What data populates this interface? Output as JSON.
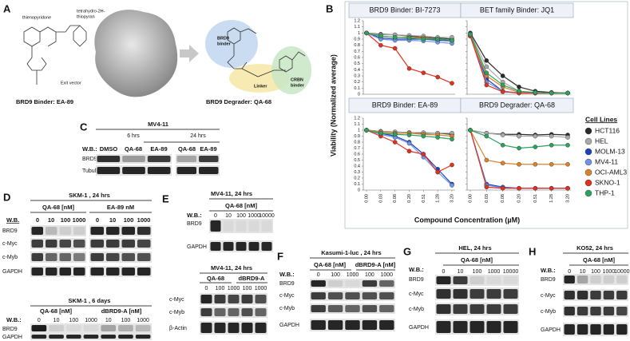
{
  "panel_labels": [
    "A",
    "B",
    "C",
    "D",
    "E",
    "F",
    "G",
    "H"
  ],
  "panel_a": {
    "structure_labels": [
      "thienopyridone",
      "tetrahydro-2H-",
      "thiopyran",
      "Exit vector"
    ],
    "binder_title": "BRD9 Binder: EA-89",
    "degrader_title": "BRD9 Degrader: QA-68",
    "regions": [
      "BRD9",
      "binder",
      "Linker",
      "CRBN",
      "binder"
    ]
  },
  "panel_b": {
    "y_label": "Viability (Normalized average)",
    "x_label": "Compound Concentration (µM)"
  },
  "legend": {
    "title": "Cell Lines",
    "entries": [
      {
        "name": "HCT116",
        "color": "#2b2b2b"
      },
      {
        "name": "HEL",
        "color": "#a9a9a9"
      },
      {
        "name": "MOLM-13",
        "color": "#1f3fbf"
      },
      {
        "name": "MV4-11",
        "color": "#7094e6"
      },
      {
        "name": "OCI-AML3",
        "color": "#d9822b"
      },
      {
        "name": "SKNO-1",
        "color": "#e0301e"
      },
      {
        "name": "THP-1",
        "color": "#2ca25f"
      }
    ]
  },
  "chart_data": [
    {
      "type": "line",
      "title": "BRD9 Binder: BI-7273",
      "ylim": [
        0,
        1.2
      ],
      "yticks": [
        0,
        0.1,
        0.2,
        0.3,
        0.4,
        0.5,
        0.6,
        0.7,
        0.8,
        0.9,
        1,
        1.1,
        1.2
      ],
      "series": [
        {
          "values": [
            1,
            0.98,
            0.97,
            0.95,
            0.93,
            0.92,
            0.9
          ]
        },
        {
          "values": [
            1,
            0.97,
            0.97,
            0.96,
            0.95,
            0.93,
            0.93
          ]
        },
        {
          "values": [
            1,
            0.92,
            0.9,
            0.9,
            0.9,
            0.88,
            0.87
          ]
        },
        {
          "values": [
            1,
            0.9,
            0.88,
            0.88,
            0.87,
            0.85,
            0.83
          ]
        },
        {
          "values": [
            1,
            0.95,
            0.93,
            0.93,
            0.92,
            0.9,
            0.88
          ]
        },
        {
          "values": [
            1,
            0.8,
            0.75,
            0.42,
            0.35,
            0.28,
            0.18
          ]
        },
        {
          "values": [
            1,
            0.95,
            0.93,
            0.92,
            0.9,
            0.9,
            0.88
          ]
        }
      ]
    },
    {
      "type": "line",
      "title": "BET family Binder: JQ1",
      "ylim": [
        0,
        1.2
      ],
      "yticks": [
        0,
        0.1,
        0.2,
        0.3,
        0.4,
        0.5,
        0.6,
        0.7,
        0.8,
        0.9,
        1,
        1.1,
        1.2
      ],
      "series": [
        {
          "values": [
            1,
            0.55,
            0.3,
            0.12,
            0.05,
            0.03,
            0.02
          ]
        },
        {
          "values": [
            0.98,
            0.45,
            0.2,
            0.05,
            0.02,
            0.02,
            0.02
          ]
        },
        {
          "values": [
            0.97,
            0.25,
            0.05,
            0.02,
            0.02,
            0.02,
            0.02
          ]
        },
        {
          "values": [
            0.95,
            0.2,
            0.05,
            0.02,
            0.02,
            0.02,
            0.02
          ]
        },
        {
          "values": [
            0.95,
            0.3,
            0.12,
            0.03,
            0.02,
            0.02,
            0.02
          ]
        },
        {
          "values": [
            0.95,
            0.15,
            0.04,
            0.02,
            0.02,
            0.02,
            0.02
          ]
        },
        {
          "values": [
            0.98,
            0.35,
            0.15,
            0.05,
            0.03,
            0.02,
            0.02
          ]
        }
      ]
    },
    {
      "type": "line",
      "title": "BRD9 Binder: EA-89",
      "categories": [
        "0.00",
        "0.03",
        "0.08",
        "0.20",
        "0.51",
        "1.28",
        "3.20"
      ],
      "ylim": [
        0,
        1.2
      ],
      "yticks": [
        0,
        0.1,
        0.2,
        0.3,
        0.4,
        0.5,
        0.6,
        0.7,
        0.8,
        0.9,
        1,
        1.1,
        1.2
      ],
      "series": [
        {
          "values": [
            1,
            0.98,
            0.97,
            0.96,
            0.95,
            0.95,
            0.93
          ]
        },
        {
          "values": [
            1,
            0.98,
            0.97,
            0.96,
            0.96,
            0.95,
            0.95
          ]
        },
        {
          "values": [
            1,
            0.95,
            0.9,
            0.8,
            0.6,
            0.35,
            0.1
          ]
        },
        {
          "values": [
            1,
            0.93,
            0.88,
            0.78,
            0.55,
            0.3,
            0.08
          ]
        },
        {
          "values": [
            1,
            0.97,
            0.95,
            0.95,
            0.93,
            0.92,
            0.9
          ]
        },
        {
          "values": [
            1,
            0.9,
            0.8,
            0.65,
            0.6,
            0.3,
            0.42
          ]
        },
        {
          "values": [
            1,
            0.95,
            0.93,
            0.92,
            0.9,
            0.88,
            0.85
          ]
        }
      ]
    },
    {
      "type": "line",
      "title": "BRD9 Degrader: QA-68",
      "categories": [
        "0.00",
        "0.03",
        "0.08",
        "0.20",
        "0.51",
        "1.28",
        "3.20"
      ],
      "ylim": [
        0,
        1.2
      ],
      "yticks": [
        0,
        0.1,
        0.2,
        0.3,
        0.4,
        0.5,
        0.6,
        0.7,
        0.8,
        0.9,
        1,
        1.1,
        1.2
      ],
      "series": [
        {
          "values": [
            1,
            0.95,
            0.93,
            0.93,
            0.92,
            0.93,
            0.92
          ]
        },
        {
          "values": [
            1,
            0.95,
            0.92,
            0.9,
            0.9,
            0.9,
            0.88
          ]
        },
        {
          "values": [
            1,
            0.1,
            0.05,
            0.03,
            0.03,
            0.03,
            0.03
          ]
        },
        {
          "values": [
            1,
            0.08,
            0.04,
            0.03,
            0.03,
            0.03,
            0.03
          ]
        },
        {
          "values": [
            1,
            0.5,
            0.45,
            0.43,
            0.43,
            0.43,
            0.43
          ]
        },
        {
          "values": [
            1,
            0.05,
            0.03,
            0.03,
            0.03,
            0.03,
            0.03
          ]
        },
        {
          "values": [
            1,
            0.9,
            0.75,
            0.7,
            0.72,
            0.75,
            0.75
          ]
        }
      ]
    }
  ],
  "panel_c": {
    "cell_line": "MV4-11",
    "times": [
      "6 hrs",
      "24 hrs"
    ],
    "wb": "W.B.:",
    "lanes": [
      "DMSO",
      "QA-68",
      "EA-89",
      "QA-68",
      "EA-89"
    ],
    "proteins": [
      "BRD9",
      "Tubulin"
    ]
  },
  "panel_d": {
    "top": {
      "title": "SKM-1 , 24 hrs",
      "groups": [
        "QA-68 [nM]",
        "EA-89 nM"
      ],
      "wb": "W.B.",
      "lanes": [
        "0",
        "10",
        "100",
        "1000",
        "0",
        "10",
        "100",
        "1000"
      ],
      "proteins": [
        "BRD9",
        "c-Myc",
        "c-Myb",
        "GAPDH"
      ]
    },
    "bottom": {
      "title": "SKM-1 , 6 days",
      "groups": [
        "QA-68 [nM]",
        "dBRD9-A [nM]"
      ],
      "wb": "W.B.:",
      "lanes": [
        "0",
        "10",
        "100",
        "1000",
        "10",
        "100",
        "1000"
      ],
      "proteins": [
        "BRD9",
        "GAPDH"
      ]
    }
  },
  "panel_e": {
    "top": {
      "title": "MV4-11, 24 hrs",
      "group": "QA-68 [nM]",
      "wb": "W.B.:",
      "lanes": [
        "0",
        "10",
        "100",
        "1000",
        "10000"
      ],
      "proteins": [
        "BRD9",
        "GAPDH"
      ]
    },
    "bottom": {
      "title": "MV4-11, 24 hrs",
      "groups": [
        "QA-68",
        "dBRD9-A"
      ],
      "lanes": [
        "0",
        "100",
        "1000",
        "100",
        "1000"
      ],
      "proteins": [
        "c-Myc",
        "c-Myb",
        "β-Actin"
      ]
    }
  },
  "panel_f": {
    "title": "Kasumi-1-luc , 24 hrs",
    "groups": [
      "QA-68 [nM]",
      "dBRD9-A [nM]"
    ],
    "wb": "W.B.:",
    "lanes": [
      "0",
      "100",
      "1000",
      "100",
      "1000"
    ],
    "proteins": [
      "BRD9",
      "c-Myc",
      "c-Myb",
      "GAPDH"
    ]
  },
  "panel_g": {
    "title": "HEL, 24 hrs",
    "group": "QA-68 [nM]",
    "wb": "W.B.:",
    "lanes": [
      "0",
      "10",
      "100",
      "1000",
      "10000"
    ],
    "proteins": [
      "BRD9",
      "c-Myc",
      "c-Myb",
      "GAPDH"
    ]
  },
  "panel_h": {
    "title": "KO52, 24 hrs",
    "group": "QA-68 [nM]",
    "wb": "W.B.:",
    "lanes": [
      "0",
      "10",
      "100",
      "1000",
      "10000"
    ],
    "proteins": [
      "BRD9",
      "c-Myc",
      "c-Myb",
      "GAPDH"
    ]
  }
}
